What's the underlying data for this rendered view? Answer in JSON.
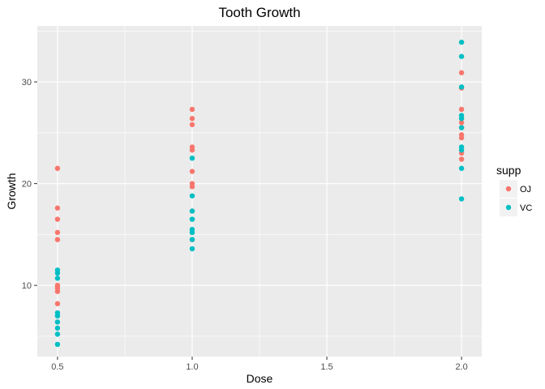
{
  "chart_data": {
    "type": "scatter",
    "title": "Tooth Growth",
    "xlabel": "Dose",
    "ylabel": "Growth",
    "xlim": [
      0.425,
      2.075
    ],
    "ylim": [
      3.0,
      35.5
    ],
    "x_ticks": [
      0.5,
      1.0,
      1.5,
      2.0
    ],
    "x_tick_labels": [
      "0.5",
      "1.0",
      "1.5",
      "2.0"
    ],
    "y_ticks": [
      10,
      20,
      30
    ],
    "y_tick_labels": [
      "10",
      "20",
      "30"
    ],
    "grid": true,
    "panel_color": "#ebebeb",
    "grid_color": "#ffffff",
    "legend": {
      "title": "supp",
      "position": "right"
    },
    "series": [
      {
        "name": "OJ",
        "color": "#f8766d",
        "x": [
          0.5,
          0.5,
          0.5,
          0.5,
          0.5,
          0.5,
          0.5,
          0.5,
          0.5,
          0.5,
          1.0,
          1.0,
          1.0,
          1.0,
          1.0,
          1.0,
          1.0,
          1.0,
          1.0,
          1.0,
          2.0,
          2.0,
          2.0,
          2.0,
          2.0,
          2.0,
          2.0,
          2.0,
          2.0,
          2.0
        ],
        "y": [
          21.5,
          17.6,
          16.5,
          15.2,
          14.5,
          10.0,
          9.7,
          9.4,
          8.2,
          9.9,
          27.3,
          26.4,
          25.8,
          23.3,
          23.6,
          21.2,
          20.0,
          19.7,
          17.3,
          14.5,
          30.9,
          29.4,
          27.3,
          26.4,
          25.5,
          24.8,
          24.5,
          23.0,
          22.4,
          26.0
        ]
      },
      {
        "name": "VC",
        "color": "#00bfc4",
        "x": [
          0.5,
          0.5,
          0.5,
          0.5,
          0.5,
          0.5,
          0.5,
          0.5,
          0.5,
          0.5,
          1.0,
          1.0,
          1.0,
          1.0,
          1.0,
          1.0,
          1.0,
          1.0,
          1.0,
          1.0,
          2.0,
          2.0,
          2.0,
          2.0,
          2.0,
          2.0,
          2.0,
          2.0,
          2.0,
          2.0
        ],
        "y": [
          11.5,
          11.2,
          10.7,
          7.3,
          7.0,
          6.4,
          5.8,
          5.2,
          4.2,
          7.0,
          22.5,
          18.8,
          17.3,
          16.5,
          15.5,
          15.2,
          14.5,
          13.6,
          16.5,
          15.2,
          33.9,
          32.5,
          29.5,
          26.7,
          26.4,
          23.6,
          23.3,
          21.5,
          18.5,
          25.5
        ]
      }
    ]
  }
}
